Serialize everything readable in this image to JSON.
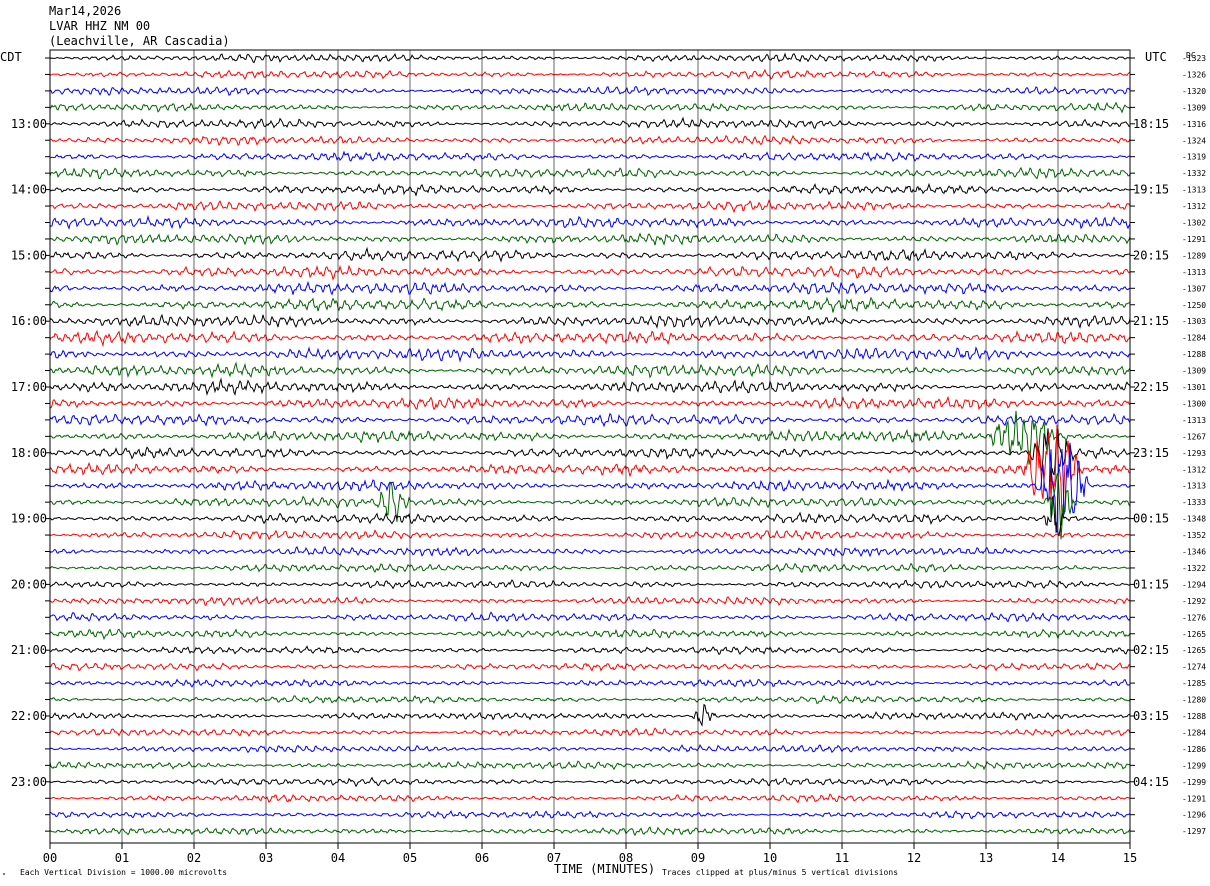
{
  "header": {
    "date": "Mar14,2026",
    "station": "LVAR HHZ NM 00",
    "location": "(Leachville, AR Cascadia)"
  },
  "labels": {
    "left_tz": "CDT",
    "right_tz": "UTC",
    "dc_label": "DC",
    "xlabel": "TIME (MINUTES)",
    "scale_note": "Each Vertical Division = 1000.00 microvolts",
    "clip_note": "Traces clipped at plus/minus 5 vertical divisions"
  },
  "colors": {
    "traces": [
      "#000000",
      "#ff0000",
      "#0000ff",
      "#006400"
    ],
    "grid": "#000000",
    "background": "#ffffff"
  },
  "chart_data": {
    "type": "line",
    "title": "",
    "x_ticks": [
      "00",
      "01",
      "02",
      "03",
      "04",
      "05",
      "06",
      "07",
      "08",
      "09",
      "10",
      "11",
      "12",
      "13",
      "14",
      "15"
    ],
    "xlim": [
      0,
      15
    ],
    "left_hour_labels": [
      "13:00",
      "14:00",
      "15:00",
      "16:00",
      "17:00",
      "18:00",
      "19:00",
      "20:00",
      "21:00",
      "22:00",
      "23:00"
    ],
    "right_hour_labels": [
      "18:15",
      "19:15",
      "20:15",
      "21:15",
      "22:15",
      "23:15",
      "00:15",
      "01:15",
      "02:15",
      "03:15",
      "04:15"
    ],
    "hour_label_first_row": 4,
    "rows_per_hour": 4,
    "dc_offsets": [
      -1323,
      -1326,
      -1320,
      -1309,
      -1316,
      -1324,
      -1319,
      -1332,
      -1313,
      -1312,
      -1302,
      -1291,
      -1289,
      -1313,
      -1307,
      -1250,
      -1303,
      -1284,
      -1288,
      -1309,
      -1301,
      -1300,
      -1313,
      -1267,
      -1293,
      -1312,
      -1313,
      -1333,
      -1348,
      -1352,
      -1346,
      -1322,
      -1294,
      -1292,
      -1276,
      -1265,
      -1265,
      -1274,
      -1285,
      -1280,
      -1288,
      -1284,
      -1286,
      -1299,
      -1299,
      -1291,
      -1296,
      -1297
    ],
    "row_amplitude": [
      1.0,
      1.0,
      1.0,
      1.0,
      1.1,
      1.1,
      1.1,
      1.2,
      1.2,
      1.2,
      1.3,
      1.3,
      1.4,
      1.4,
      1.5,
      1.5,
      1.5,
      1.5,
      1.5,
      1.5,
      1.5,
      1.4,
      1.4,
      1.4,
      1.3,
      1.3,
      1.3,
      1.2,
      1.2,
      1.1,
      1.1,
      1.0,
      1.0,
      1.0,
      1.0,
      1.0,
      0.9,
      0.9,
      0.9,
      0.9,
      0.9,
      0.9,
      0.9,
      0.9,
      0.9,
      0.9,
      0.9,
      0.9
    ],
    "events": [
      {
        "row": 23,
        "start_min": 13.0,
        "end_min": 14.6,
        "peak": 2.5
      },
      {
        "row": 24,
        "start_min": 13.6,
        "end_min": 14.6,
        "peak": 3.0
      },
      {
        "row": 25,
        "start_min": 13.5,
        "end_min": 14.8,
        "peak": 5.0
      },
      {
        "row": 26,
        "start_min": 13.7,
        "end_min": 14.9,
        "peak": 5.0
      },
      {
        "row": 27,
        "start_min": 4.5,
        "end_min": 5.3,
        "peak": 2.2
      },
      {
        "row": 27,
        "start_min": 13.8,
        "end_min": 14.5,
        "peak": 4.0
      },
      {
        "row": 28,
        "start_min": 13.8,
        "end_min": 14.3,
        "peak": 2.5
      },
      {
        "row": 40,
        "start_min": 8.9,
        "end_min": 9.5,
        "peak": 1.8
      }
    ]
  }
}
